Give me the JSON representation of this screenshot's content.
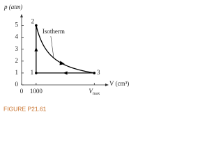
{
  "chart_data": {
    "type": "pv-cycle",
    "y_label": "p (atm)",
    "x_label": "V (cm³)",
    "xlim": [
      0,
      5800
    ],
    "ylim": [
      0,
      5.5
    ],
    "yticks": [
      0,
      1,
      2,
      3,
      4,
      5
    ],
    "xticks": [
      0,
      1000,
      {
        "value": 5000,
        "label": "V",
        "subscript": "max"
      }
    ],
    "points": {
      "labels": [
        "1",
        "2",
        "3"
      ],
      "x": [
        1000,
        1000,
        5000
      ],
      "y": [
        1,
        5,
        1
      ]
    },
    "annotation": "Isotherm",
    "color": "#000000",
    "caption": "FIGURE P21.61"
  }
}
